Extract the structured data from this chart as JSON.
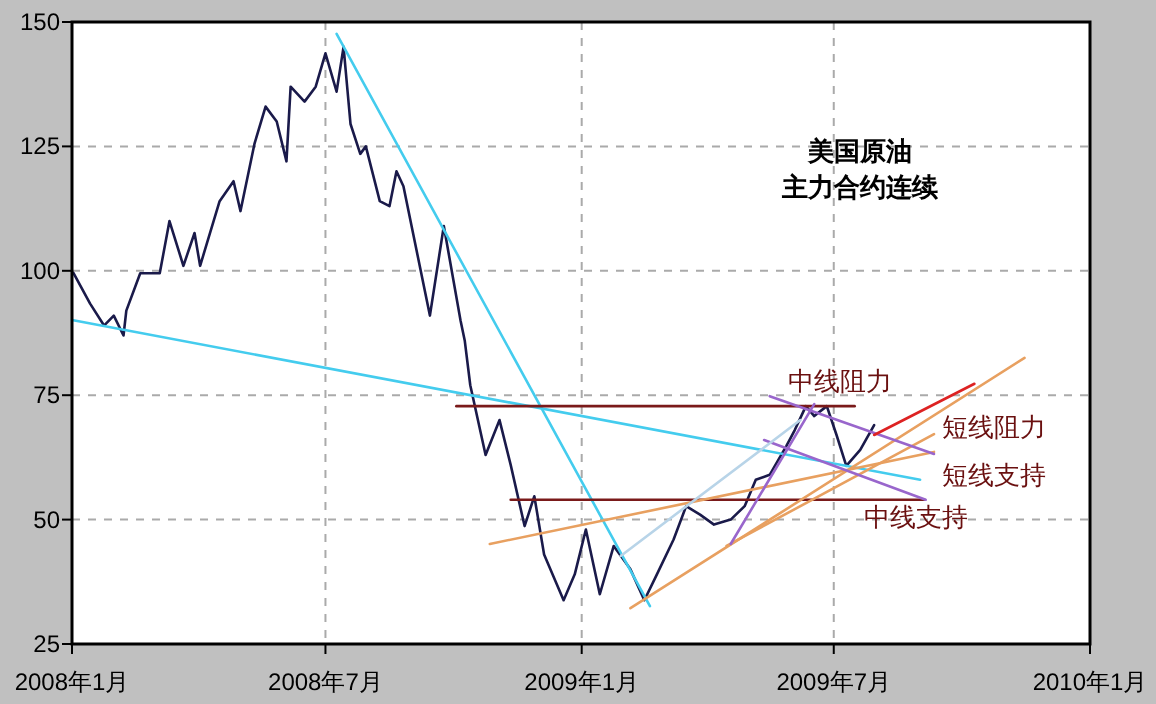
{
  "chart_data": {
    "type": "line",
    "title": "美国原油",
    "subtitle": "主力合约连续",
    "xlim": [
      "2008-01",
      "2010-01"
    ],
    "xticks": [
      {
        "value": "2008-01",
        "label": "2008年1月"
      },
      {
        "value": "2008-07",
        "label": "2008年7月"
      },
      {
        "value": "2009-01",
        "label": "2009年1月"
      },
      {
        "value": "2009-07",
        "label": "2009年7月"
      },
      {
        "value": "2010-01",
        "label": "2010年1月"
      }
    ],
    "ylim": [
      25,
      150
    ],
    "yticks": [
      25,
      50,
      75,
      100,
      125,
      150
    ],
    "grid": true,
    "series": [
      {
        "color": "#1a1a4a",
        "x": [
          "2008-01-02",
          "2008-01-14",
          "2008-01-24",
          "2008-01-31",
          "2008-02-07",
          "2008-02-09",
          "2008-02-19",
          "2008-03-04",
          "2008-03-11",
          "2008-03-21",
          "2008-03-29",
          "2008-04-02",
          "2008-04-16",
          "2008-04-26",
          "2008-05-01",
          "2008-05-11",
          "2008-05-19",
          "2008-05-27",
          "2008-06-03",
          "2008-06-06",
          "2008-06-16",
          "2008-06-24",
          "2008-07-01",
          "2008-07-09",
          "2008-07-14",
          "2008-07-19",
          "2008-07-26",
          "2008-07-30",
          "2008-08-09",
          "2008-08-16",
          "2008-08-21",
          "2008-08-26",
          "2008-09-14",
          "2008-09-24",
          "2008-10-06",
          "2008-10-09",
          "2008-10-13",
          "2008-10-24",
          "2008-11-03",
          "2008-11-11",
          "2008-11-21",
          "2008-11-28",
          "2008-12-05",
          "2008-12-19",
          "2008-12-27",
          "2009-01-04",
          "2009-01-14",
          "2009-01-24",
          "2009-02-05",
          "2009-02-15",
          "2009-02-24",
          "2009-03-08",
          "2009-03-17",
          "2009-03-27",
          "2009-04-06",
          "2009-04-18",
          "2009-04-28",
          "2009-05-06",
          "2009-05-16",
          "2009-05-28",
          "2009-06-03",
          "2009-06-11",
          "2009-06-17",
          "2009-06-26",
          "2009-07-03",
          "2009-07-10",
          "2009-07-20",
          "2009-07-30"
        ],
        "values": [
          99.6,
          93.4,
          89,
          91,
          87,
          92,
          99.5,
          99.5,
          110,
          101,
          107.6,
          101,
          114,
          118,
          112,
          125.5,
          133,
          130,
          122,
          137,
          134,
          137,
          143.7,
          136,
          145,
          129.5,
          123.5,
          125,
          114,
          113,
          120,
          117,
          91,
          109,
          90,
          86,
          77,
          63,
          70,
          61,
          48.7,
          54.7,
          43,
          33.8,
          39,
          48,
          35,
          44.7,
          40,
          33.8,
          39,
          46,
          52.7,
          51,
          49,
          50,
          52.7,
          58,
          59,
          64.8,
          68,
          72.8,
          70.8,
          72.8,
          67,
          60.8,
          64,
          69
        ]
      },
      {
        "color": "#44ccee",
        "x": [
          "2008-07-09",
          "2009-02-19"
        ],
        "values": [
          147.6,
          32.6
        ]
      },
      {
        "color": "#44ccee",
        "x": [
          "2008-01-01",
          "2009-09-01"
        ],
        "values": [
          90.1,
          58
        ]
      },
      {
        "color": "#7a1a1a",
        "x": [
          "2008-10-03",
          "2009-07-16"
        ],
        "values": [
          72.8,
          72.8
        ]
      },
      {
        "color": "#7a1a1a",
        "x": [
          "2008-11-11",
          "2009-09-04"
        ],
        "values": [
          54,
          54
        ]
      },
      {
        "color": "#e8a060",
        "x": [
          "2008-10-27",
          "2009-09-11"
        ],
        "values": [
          45.1,
          63.6
        ]
      },
      {
        "color": "#e8a060",
        "x": [
          "2009-02-05",
          "2009-11-15"
        ],
        "values": [
          32.2,
          82.5
        ]
      },
      {
        "color": "#e8a060",
        "x": [
          "2009-04-15",
          "2009-09-11"
        ],
        "values": [
          44.7,
          67.2
        ]
      },
      {
        "color": "#9966cc",
        "x": [
          "2009-05-16",
          "2009-09-11"
        ],
        "values": [
          74.8,
          63.2
        ]
      },
      {
        "color": "#9966cc",
        "x": [
          "2009-05-12",
          "2009-09-05"
        ],
        "values": [
          66,
          54
        ]
      },
      {
        "color": "#9966cc",
        "x": [
          "2009-04-18",
          "2009-06-17"
        ],
        "values": [
          45.1,
          73.2
        ]
      },
      {
        "color": "#b8d4e8",
        "x": [
          "2009-01-29",
          "2009-06-07"
        ],
        "values": [
          42.7,
          70
        ]
      },
      {
        "color": "#dd2222",
        "x": [
          "2009-07-30",
          "2009-10-10"
        ],
        "values": [
          67,
          77.3
        ]
      }
    ],
    "annotations": [
      "中线阻力",
      "短线阻力",
      "短线支持",
      "中线支持"
    ]
  }
}
